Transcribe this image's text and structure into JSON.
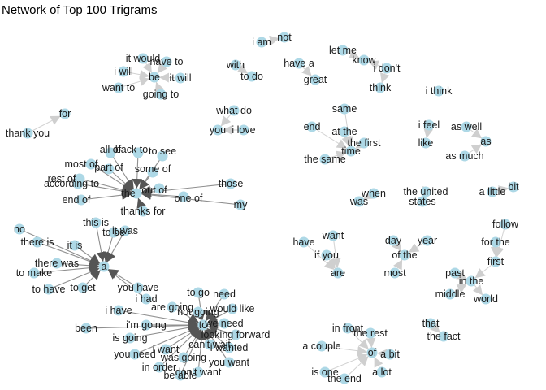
{
  "title": "Network of Top 100 Trigrams",
  "colors": {
    "node": "#add8e6",
    "edge_light": "#d9d9d9",
    "edge_dark": "#7a7a7a",
    "label": "#1a1a1a"
  },
  "nodes": [
    {
      "id": "i_am",
      "label": "i am"
    },
    {
      "id": "not",
      "label": "not"
    },
    {
      "id": "with",
      "label": "with"
    },
    {
      "id": "to_do",
      "label": "to do"
    },
    {
      "id": "have_a",
      "label": "have a"
    },
    {
      "id": "great",
      "label": "great"
    },
    {
      "id": "let_me",
      "label": "let me"
    },
    {
      "id": "know",
      "label": "know"
    },
    {
      "id": "i_dont",
      "label": "i don't"
    },
    {
      "id": "think",
      "label": "think"
    },
    {
      "id": "i_think",
      "label": "i think"
    },
    {
      "id": "it_would",
      "label": "it would"
    },
    {
      "id": "have_to",
      "label": "have to"
    },
    {
      "id": "i_will",
      "label": "i will"
    },
    {
      "id": "be",
      "label": "be"
    },
    {
      "id": "it_will",
      "label": "it will"
    },
    {
      "id": "want_to",
      "label": "want to"
    },
    {
      "id": "going_to",
      "label": "going to"
    },
    {
      "id": "for",
      "label": "for"
    },
    {
      "id": "thank_you",
      "label": "thank you"
    },
    {
      "id": "what_do",
      "label": "what do"
    },
    {
      "id": "you",
      "label": "you"
    },
    {
      "id": "i_love",
      "label": "i love"
    },
    {
      "id": "same",
      "label": "same"
    },
    {
      "id": "end",
      "label": "end"
    },
    {
      "id": "at_the",
      "label": "at the"
    },
    {
      "id": "time",
      "label": "time"
    },
    {
      "id": "the_first",
      "label": "the first"
    },
    {
      "id": "the_same",
      "label": "the same"
    },
    {
      "id": "i_feel",
      "label": "i feel"
    },
    {
      "id": "like",
      "label": "like"
    },
    {
      "id": "as_well",
      "label": "as well"
    },
    {
      "id": "as",
      "label": "as"
    },
    {
      "id": "as_much",
      "label": "as much"
    },
    {
      "id": "all_of",
      "label": "all of"
    },
    {
      "id": "most_of",
      "label": "most of"
    },
    {
      "id": "part_of",
      "label": "part of"
    },
    {
      "id": "back_to",
      "label": "back to"
    },
    {
      "id": "to_see",
      "label": "to see"
    },
    {
      "id": "some_of",
      "label": "some of"
    },
    {
      "id": "according_to",
      "label": "according to"
    },
    {
      "id": "rest_of",
      "label": "rest of"
    },
    {
      "id": "the",
      "label": "the"
    },
    {
      "id": "out_of",
      "label": "out of"
    },
    {
      "id": "one_of",
      "label": "one of"
    },
    {
      "id": "end_of",
      "label": "end of"
    },
    {
      "id": "those",
      "label": "those"
    },
    {
      "id": "my",
      "label": "my"
    },
    {
      "id": "thanks_for",
      "label": "thanks for"
    },
    {
      "id": "when",
      "label": "when"
    },
    {
      "id": "was",
      "label": "was"
    },
    {
      "id": "the_united",
      "label": "the united"
    },
    {
      "id": "states",
      "label": "states"
    },
    {
      "id": "a_little",
      "label": "a little"
    },
    {
      "id": "bit",
      "label": "bit"
    },
    {
      "id": "no",
      "label": "no"
    },
    {
      "id": "this_is",
      "label": "this is"
    },
    {
      "id": "to_be",
      "label": "to be"
    },
    {
      "id": "it_was",
      "label": "it was"
    },
    {
      "id": "there_is",
      "label": "there is"
    },
    {
      "id": "it_is",
      "label": "it is"
    },
    {
      "id": "a",
      "label": "a"
    },
    {
      "id": "there_was",
      "label": "there was"
    },
    {
      "id": "to_make",
      "label": "to make"
    },
    {
      "id": "to_have",
      "label": "to have"
    },
    {
      "id": "to_get",
      "label": "to get"
    },
    {
      "id": "want",
      "label": "want"
    },
    {
      "id": "have",
      "label": "have"
    },
    {
      "id": "if_you",
      "label": "if you"
    },
    {
      "id": "are",
      "label": "are"
    },
    {
      "id": "day",
      "label": "day"
    },
    {
      "id": "year",
      "label": "year"
    },
    {
      "id": "of_the",
      "label": "of the"
    },
    {
      "id": "most",
      "label": "most"
    },
    {
      "id": "follow",
      "label": "follow"
    },
    {
      "id": "for_the",
      "label": "for the"
    },
    {
      "id": "first",
      "label": "first"
    },
    {
      "id": "past",
      "label": "past"
    },
    {
      "id": "in_the",
      "label": "in the"
    },
    {
      "id": "middle",
      "label": "middle"
    },
    {
      "id": "world",
      "label": "world"
    },
    {
      "id": "you_have",
      "label": "you have"
    },
    {
      "id": "i_had",
      "label": "i had"
    },
    {
      "id": "to_go",
      "label": "to go"
    },
    {
      "id": "need",
      "label": "need"
    },
    {
      "id": "i_have",
      "label": "i have"
    },
    {
      "id": "are_going",
      "label": "are going"
    },
    {
      "id": "not_going",
      "label": "not going"
    },
    {
      "id": "would_like",
      "label": "would like"
    },
    {
      "id": "been",
      "label": "been"
    },
    {
      "id": "im_going",
      "label": "i'm going"
    },
    {
      "id": "we_need",
      "label": "we need"
    },
    {
      "id": "to",
      "label": "to"
    },
    {
      "id": "looking_forward",
      "label": "looking forward"
    },
    {
      "id": "is_going",
      "label": "is going"
    },
    {
      "id": "cant_wait",
      "label": "can't wait"
    },
    {
      "id": "i_want",
      "label": "i want"
    },
    {
      "id": "i_wanted",
      "label": "i wanted"
    },
    {
      "id": "you_need",
      "label": "you need"
    },
    {
      "id": "was_going",
      "label": "was going"
    },
    {
      "id": "you_want",
      "label": "you want"
    },
    {
      "id": "in_order",
      "label": "in order"
    },
    {
      "id": "dont_want",
      "label": "don't want"
    },
    {
      "id": "be_able",
      "label": "be able"
    },
    {
      "id": "that",
      "label": "that"
    },
    {
      "id": "the_fact",
      "label": "the fact"
    },
    {
      "id": "in_front",
      "label": "in front"
    },
    {
      "id": "the_rest",
      "label": "the rest"
    },
    {
      "id": "a_couple",
      "label": "a couple"
    },
    {
      "id": "of",
      "label": "of"
    },
    {
      "id": "a_bit",
      "label": "a bit"
    },
    {
      "id": "is_one",
      "label": "is one"
    },
    {
      "id": "a_lot",
      "label": "a lot"
    },
    {
      "id": "the_end",
      "label": "the end"
    }
  ],
  "edges": [
    [
      "i_am",
      "not"
    ],
    [
      "with",
      "to_do"
    ],
    [
      "have_a",
      "great"
    ],
    [
      "let_me",
      "know"
    ],
    [
      "i_dont",
      "know"
    ],
    [
      "i_dont",
      "think"
    ],
    [
      "it_would",
      "be"
    ],
    [
      "have_to",
      "be"
    ],
    [
      "i_will",
      "be"
    ],
    [
      "it_will",
      "be"
    ],
    [
      "want_to",
      "be"
    ],
    [
      "going_to",
      "be"
    ],
    [
      "thank_you",
      "for"
    ],
    [
      "what_do",
      "you"
    ],
    [
      "i_love",
      "you"
    ],
    [
      "end",
      "time"
    ],
    [
      "at_the",
      "time"
    ],
    [
      "same",
      "time"
    ],
    [
      "the_first",
      "time"
    ],
    [
      "the_same",
      "time"
    ],
    [
      "i_feel",
      "like"
    ],
    [
      "as_well",
      "as"
    ],
    [
      "as_much",
      "as"
    ],
    [
      "all_of",
      "the"
    ],
    [
      "most_of",
      "the"
    ],
    [
      "part_of",
      "the"
    ],
    [
      "back_to",
      "the"
    ],
    [
      "to_see",
      "the"
    ],
    [
      "some_of",
      "the"
    ],
    [
      "according_to",
      "the"
    ],
    [
      "rest_of",
      "the"
    ],
    [
      "out_of",
      "the"
    ],
    [
      "one_of",
      "the"
    ],
    [
      "end_of",
      "the"
    ],
    [
      "thanks_for",
      "the"
    ],
    [
      "those",
      "the"
    ],
    [
      "my",
      "the"
    ],
    [
      "when",
      "was"
    ],
    [
      "the_united",
      "states"
    ],
    [
      "a_little",
      "bit"
    ],
    [
      "no",
      "a"
    ],
    [
      "this_is",
      "a"
    ],
    [
      "to_be",
      "a"
    ],
    [
      "it_was",
      "a"
    ],
    [
      "there_is",
      "a"
    ],
    [
      "it_is",
      "a"
    ],
    [
      "there_was",
      "a"
    ],
    [
      "to_make",
      "a"
    ],
    [
      "to_have",
      "a"
    ],
    [
      "to_get",
      "a"
    ],
    [
      "you_have",
      "a"
    ],
    [
      "i_had",
      "a"
    ],
    [
      "want",
      "are"
    ],
    [
      "have",
      "are"
    ],
    [
      "if_you",
      "are"
    ],
    [
      "day",
      "of_the"
    ],
    [
      "year",
      "of_the"
    ],
    [
      "most",
      "of_the"
    ],
    [
      "follow",
      "first"
    ],
    [
      "for_the",
      "first"
    ],
    [
      "past",
      "in_the"
    ],
    [
      "middle",
      "in_the"
    ],
    [
      "in_the",
      "world"
    ],
    [
      "first",
      "in_the"
    ],
    [
      "to_go",
      "to"
    ],
    [
      "need",
      "to"
    ],
    [
      "are_going",
      "to"
    ],
    [
      "not_going",
      "to"
    ],
    [
      "would_like",
      "to"
    ],
    [
      "i_have",
      "to"
    ],
    [
      "been",
      "to"
    ],
    [
      "im_going",
      "to"
    ],
    [
      "we_need",
      "to"
    ],
    [
      "looking_forward",
      "to"
    ],
    [
      "is_going",
      "to"
    ],
    [
      "cant_wait",
      "to"
    ],
    [
      "i_want",
      "to"
    ],
    [
      "i_wanted",
      "to"
    ],
    [
      "you_need",
      "to"
    ],
    [
      "was_going",
      "to"
    ],
    [
      "you_want",
      "to"
    ],
    [
      "in_order",
      "to"
    ],
    [
      "dont_want",
      "to"
    ],
    [
      "be_able",
      "to"
    ],
    [
      "that",
      "the_fact"
    ],
    [
      "in_front",
      "of"
    ],
    [
      "the_rest",
      "of"
    ],
    [
      "a_couple",
      "of"
    ],
    [
      "a_bit",
      "of"
    ],
    [
      "is_one",
      "of"
    ],
    [
      "a_lot",
      "of"
    ],
    [
      "the_end",
      "of"
    ]
  ]
}
